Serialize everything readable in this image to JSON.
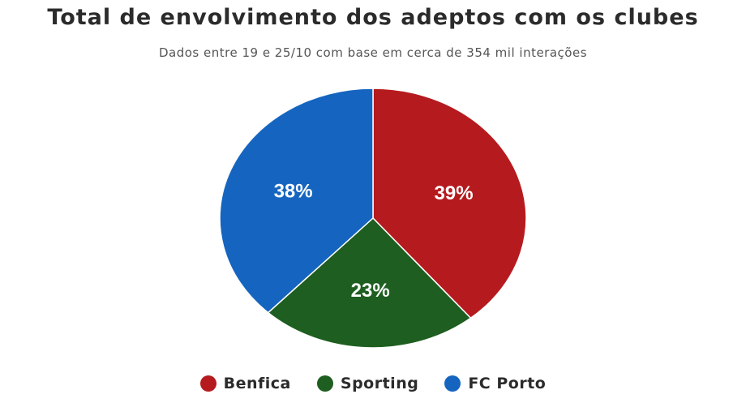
{
  "chart_data": {
    "type": "pie",
    "title": "Total de envolvimento dos adeptos com os clubes",
    "subtitle": "Dados entre 19 e 25/10 com base em cerca de 354 mil interações",
    "legend_position": "bottom",
    "slices": [
      {
        "label": "Benfica",
        "value": 39,
        "display": "39%",
        "color": "#b51b1e"
      },
      {
        "label": "Sporting",
        "value": 23,
        "display": "23%",
        "color": "#1e5e20"
      },
      {
        "label": "FC Porto",
        "value": 38,
        "display": "38%",
        "color": "#1565c0"
      }
    ]
  }
}
